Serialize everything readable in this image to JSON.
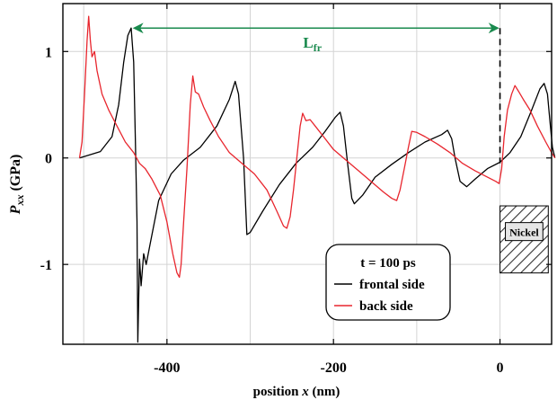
{
  "chart_data": {
    "type": "line",
    "title": "",
    "xlabel": "position x (nm)",
    "xlabel_parts": [
      "position ",
      "x",
      " (nm)"
    ],
    "ylabel_parts": [
      "P",
      "xx",
      " (GPa)"
    ],
    "xlim": [
      -525,
      62
    ],
    "ylim": [
      -1.75,
      1.45
    ],
    "grid": true,
    "legend_placement": "lower-right",
    "x_ticks": [
      -400,
      -200,
      0
    ],
    "x_tick_labels": [
      "-400",
      "-200",
      "0"
    ],
    "y_ticks": [
      1,
      0,
      -1
    ],
    "y_tick_labels": [
      "1",
      "0",
      "-1"
    ],
    "legend": {
      "title": "t = 100 ps",
      "entries": [
        {
          "label": "frontal side",
          "color": "#000000"
        },
        {
          "label": "back side",
          "color": "#e8262e"
        }
      ]
    },
    "annotations": {
      "length_label_main": "L",
      "length_label_sub": "fr",
      "length_from": -442,
      "length_to": 0,
      "length_y": 1.22,
      "length_color": "#1a8a4e",
      "interface_x": 0,
      "nickel_label": "Nickel",
      "nickel_x_range": [
        0,
        58
      ],
      "nickel_y_range": [
        -1.08,
        -0.45
      ]
    },
    "series": [
      {
        "name": "frontal side",
        "color": "#000000",
        "points": [
          [
            -505,
            0.0
          ],
          [
            -480,
            0.06
          ],
          [
            -466,
            0.2
          ],
          [
            -458,
            0.5
          ],
          [
            -452,
            0.9
          ],
          [
            -447,
            1.15
          ],
          [
            -443,
            1.22
          ],
          [
            -440,
            0.9
          ],
          [
            -438,
            0.2
          ],
          [
            -436,
            -0.6
          ],
          [
            -435,
            -1.73
          ],
          [
            -433,
            -0.95
          ],
          [
            -431,
            -1.2
          ],
          [
            -428,
            -0.9
          ],
          [
            -425,
            -1.0
          ],
          [
            -420,
            -0.8
          ],
          [
            -410,
            -0.4
          ],
          [
            -395,
            -0.15
          ],
          [
            -380,
            -0.02
          ],
          [
            -360,
            0.1
          ],
          [
            -340,
            0.3
          ],
          [
            -325,
            0.55
          ],
          [
            -318,
            0.72
          ],
          [
            -314,
            0.6
          ],
          [
            -308,
            0.0
          ],
          [
            -304,
            -0.72
          ],
          [
            -300,
            -0.7
          ],
          [
            -285,
            -0.5
          ],
          [
            -265,
            -0.25
          ],
          [
            -245,
            -0.05
          ],
          [
            -225,
            0.1
          ],
          [
            -210,
            0.25
          ],
          [
            -198,
            0.38
          ],
          [
            -192,
            0.43
          ],
          [
            -188,
            0.3
          ],
          [
            -183,
            -0.05
          ],
          [
            -178,
            -0.38
          ],
          [
            -175,
            -0.43
          ],
          [
            -165,
            -0.35
          ],
          [
            -150,
            -0.18
          ],
          [
            -130,
            -0.06
          ],
          [
            -110,
            0.05
          ],
          [
            -90,
            0.15
          ],
          [
            -70,
            0.22
          ],
          [
            -63,
            0.26
          ],
          [
            -58,
            0.18
          ],
          [
            -54,
            0.0
          ],
          [
            -48,
            -0.22
          ],
          [
            -40,
            -0.27
          ],
          [
            -30,
            -0.2
          ],
          [
            -15,
            -0.1
          ],
          [
            0,
            -0.04
          ],
          [
            12,
            0.05
          ],
          [
            25,
            0.2
          ],
          [
            38,
            0.45
          ],
          [
            48,
            0.65
          ],
          [
            53,
            0.7
          ],
          [
            57,
            0.6
          ],
          [
            60,
            0.35
          ],
          [
            63,
            0.1
          ],
          [
            66,
            0.0
          ]
        ]
      },
      {
        "name": "back side",
        "color": "#e8262e",
        "points": [
          [
            -505,
            0.0
          ],
          [
            -502,
            0.15
          ],
          [
            -499,
            0.6
          ],
          [
            -496,
            1.1
          ],
          [
            -494,
            1.33
          ],
          [
            -492,
            1.1
          ],
          [
            -490,
            0.95
          ],
          [
            -487,
            1.0
          ],
          [
            -484,
            0.82
          ],
          [
            -478,
            0.6
          ],
          [
            -470,
            0.45
          ],
          [
            -460,
            0.3
          ],
          [
            -450,
            0.15
          ],
          [
            -440,
            0.05
          ],
          [
            -433,
            -0.05
          ],
          [
            -426,
            -0.1
          ],
          [
            -418,
            -0.2
          ],
          [
            -408,
            -0.35
          ],
          [
            -400,
            -0.6
          ],
          [
            -393,
            -0.9
          ],
          [
            -388,
            -1.08
          ],
          [
            -385,
            -1.12
          ],
          [
            -383,
            -1.0
          ],
          [
            -380,
            -0.6
          ],
          [
            -376,
            -0.1
          ],
          [
            -372,
            0.5
          ],
          [
            -369,
            0.77
          ],
          [
            -366,
            0.62
          ],
          [
            -362,
            0.6
          ],
          [
            -356,
            0.48
          ],
          [
            -348,
            0.35
          ],
          [
            -338,
            0.2
          ],
          [
            -325,
            0.05
          ],
          [
            -310,
            -0.05
          ],
          [
            -295,
            -0.15
          ],
          [
            -280,
            -0.3
          ],
          [
            -268,
            -0.5
          ],
          [
            -260,
            -0.64
          ],
          [
            -256,
            -0.66
          ],
          [
            -252,
            -0.55
          ],
          [
            -248,
            -0.3
          ],
          [
            -244,
            0.0
          ],
          [
            -240,
            0.3
          ],
          [
            -237,
            0.42
          ],
          [
            -233,
            0.35
          ],
          [
            -228,
            0.36
          ],
          [
            -222,
            0.3
          ],
          [
            -212,
            0.2
          ],
          [
            -200,
            0.08
          ],
          [
            -185,
            -0.02
          ],
          [
            -170,
            -0.12
          ],
          [
            -155,
            -0.22
          ],
          [
            -140,
            -0.32
          ],
          [
            -130,
            -0.38
          ],
          [
            -124,
            -0.4
          ],
          [
            -120,
            -0.3
          ],
          [
            -115,
            -0.1
          ],
          [
            -110,
            0.1
          ],
          [
            -106,
            0.25
          ],
          [
            -100,
            0.24
          ],
          [
            -90,
            0.2
          ],
          [
            -75,
            0.13
          ],
          [
            -60,
            0.05
          ],
          [
            -45,
            -0.05
          ],
          [
            -30,
            -0.12
          ],
          [
            -15,
            -0.18
          ],
          [
            -5,
            -0.22
          ],
          [
            -1,
            -0.24
          ],
          [
            2,
            -0.1
          ],
          [
            5,
            0.2
          ],
          [
            9,
            0.45
          ],
          [
            14,
            0.6
          ],
          [
            18,
            0.68
          ],
          [
            22,
            0.63
          ],
          [
            28,
            0.55
          ],
          [
            36,
            0.45
          ],
          [
            45,
            0.3
          ],
          [
            55,
            0.15
          ],
          [
            62,
            0.05
          ],
          [
            66,
            0.0
          ]
        ]
      }
    ]
  }
}
